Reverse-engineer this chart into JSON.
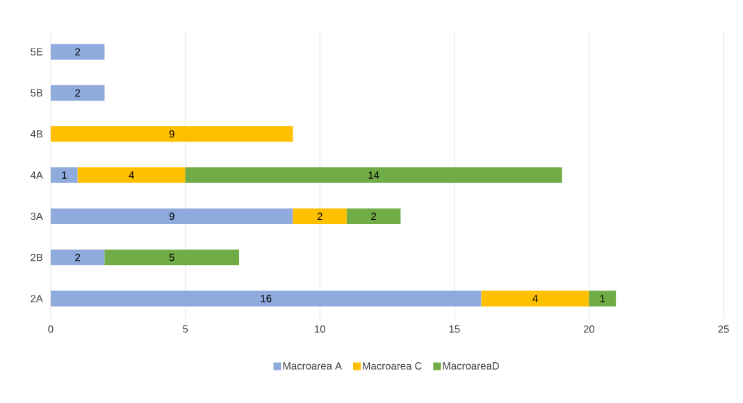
{
  "chart_data": {
    "type": "bar",
    "orientation": "horizontal",
    "stacked": true,
    "categories": [
      "5E",
      "5B",
      "4B",
      "4A",
      "3A",
      "2B",
      "2A"
    ],
    "series": [
      {
        "name": "Macroarea A",
        "color": "#8faadc",
        "values": [
          2,
          2,
          null,
          1,
          9,
          2,
          16
        ]
      },
      {
        "name": "Macroarea C",
        "color": "#ffc000",
        "values": [
          null,
          null,
          9,
          4,
          2,
          null,
          4
        ]
      },
      {
        "name": "MacroareaD",
        "color": "#70ad47",
        "values": [
          null,
          null,
          null,
          14,
          2,
          5,
          1
        ]
      }
    ],
    "xlim": [
      0,
      25
    ],
    "xticks": [
      0,
      5,
      10,
      15,
      20,
      25
    ],
    "grid": "x",
    "legend": "bottom",
    "data_labels": true
  }
}
